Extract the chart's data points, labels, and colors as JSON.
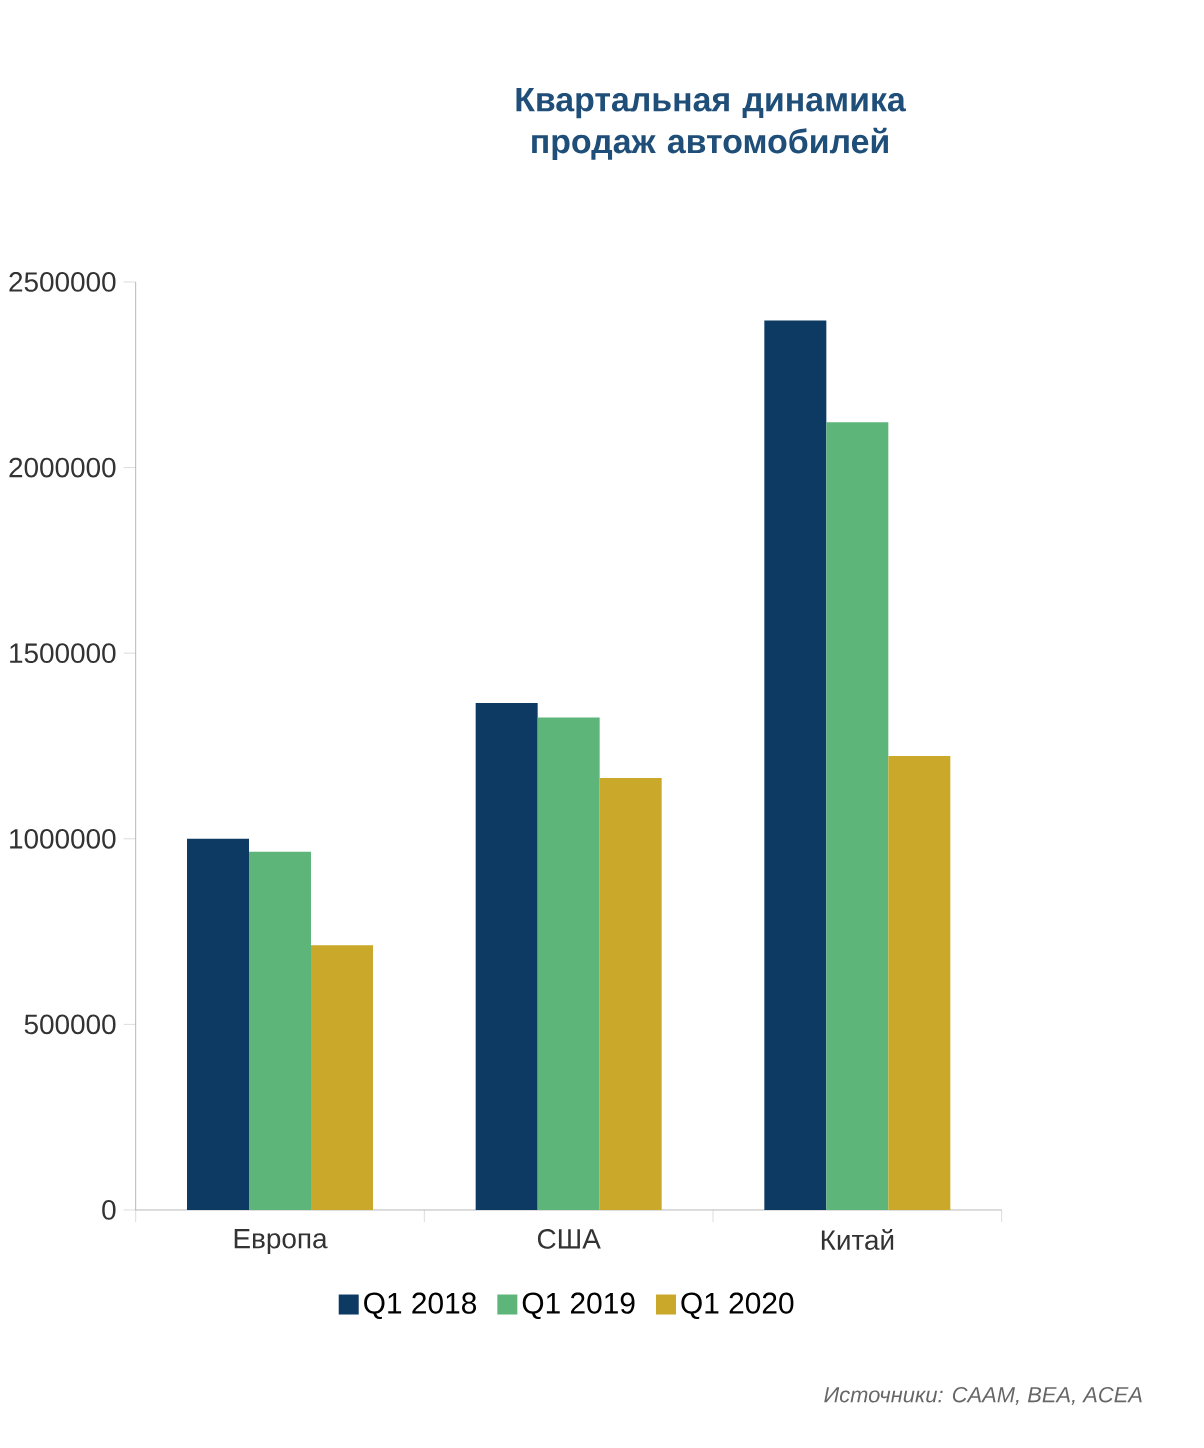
{
  "chart_data": {
    "type": "bar",
    "title": "Квартальная динамика продаж автомобилей",
    "categories": [
      "Европа",
      "США",
      "Китай"
    ],
    "series": [
      {
        "name": "Q1 2018",
        "color": "#0d3a63",
        "values": [
          1000000,
          1366000,
          2396000
        ]
      },
      {
        "name": "Q1 2019",
        "color": "#5db57a",
        "values": [
          965000,
          1327000,
          2122000
        ]
      },
      {
        "name": "Q1 2020",
        "color": "#c9a82a",
        "values": [
          713000,
          1164000,
          1223000
        ]
      }
    ],
    "ylim": [
      0,
      2500000
    ],
    "yticks": [
      0,
      500000,
      1000000,
      1500000,
      2000000,
      2500000
    ],
    "legend": "bottom",
    "grid": false,
    "annotations": [
      "Источники: CAAM, BEA, ACEA"
    ]
  }
}
